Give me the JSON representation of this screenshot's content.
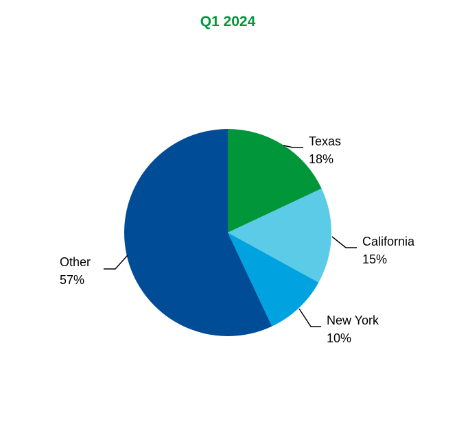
{
  "chart_data": {
    "type": "pie",
    "title": "Q1 2024",
    "title_color": "#009639",
    "start": "top",
    "direction": "clockwise",
    "slices": [
      {
        "label": "Texas",
        "value": 18,
        "display": "18%",
        "color": "#009639"
      },
      {
        "label": "California",
        "value": 15,
        "display": "15%",
        "color": "#5BCBE8"
      },
      {
        "label": "New York",
        "value": 10,
        "display": "10%",
        "color": "#00A3E0"
      },
      {
        "label": "Other",
        "value": 57,
        "display": "57%",
        "color": "#004C97"
      }
    ]
  }
}
